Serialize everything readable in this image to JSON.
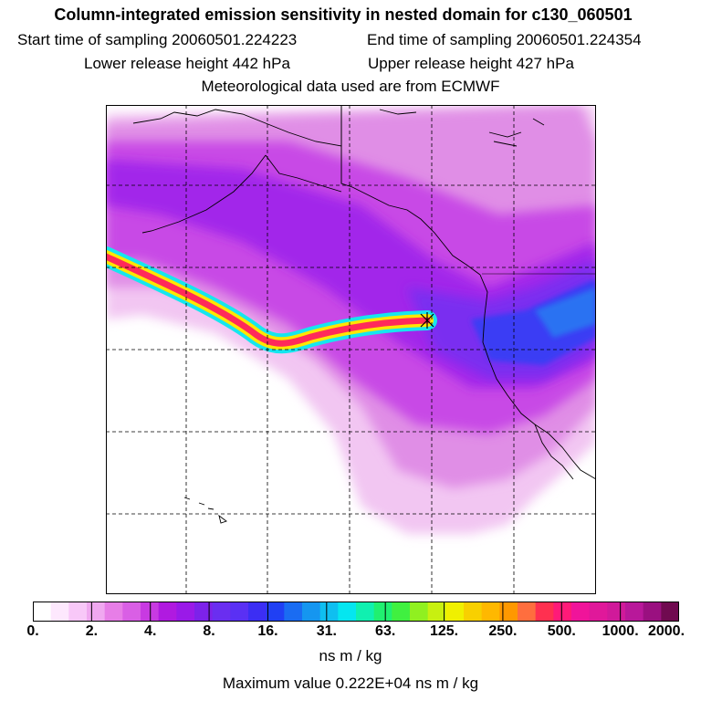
{
  "title": "Column-integrated emission sensitivity in nested domain for c130_060501",
  "sampling": {
    "start_label": "Start time of sampling",
    "start_value": "20060501.224223",
    "end_label": "End time of sampling",
    "end_value": "20060501.224354"
  },
  "release": {
    "lower_label": "Lower release height",
    "lower_value": "442 hPa",
    "upper_label": "Upper release height",
    "upper_value": "427 hPa"
  },
  "met_note": "Meteorological data used are from ECMWF",
  "colorbar": {
    "ticks": [
      "0.",
      "2.",
      "4.",
      "8.",
      "16.",
      "31.",
      "63.",
      "125.",
      "250.",
      "500.",
      "1000.",
      "2000."
    ],
    "unit": "ns m / kg",
    "colors": [
      "#ffffff",
      "#fde8fd",
      "#f8c8f8",
      "#f0a8f0",
      "#e77ee7",
      "#d95fe5",
      "#c83ae2",
      "#b01ae0",
      "#9a1ae8",
      "#7d22ea",
      "#6a2ef0",
      "#5a30f4",
      "#3c2ef4",
      "#2040f4",
      "#1a6cf2",
      "#1596f0",
      "#0fbff0",
      "#05e6f0",
      "#10f0b0",
      "#20f070",
      "#40f040",
      "#90f020",
      "#c8f010",
      "#f0f000",
      "#f8d000",
      "#ffb800",
      "#ff9800",
      "#ff6e3e",
      "#ff3050",
      "#ff1a78",
      "#f0149a",
      "#e0189a",
      "#d01a9a",
      "#b8189a",
      "#9a1080",
      "#700a50"
    ]
  },
  "max_value": {
    "label": "Maximum value",
    "value": "0.222E+04",
    "unit": "ns m / kg"
  },
  "map_colors": {
    "light": "#f2c6f2",
    "pink": "#e08ee6",
    "magenta": "#c84ae6",
    "purple": "#a227ea",
    "violet": "#7a2ef0",
    "blue": "#3a3ef4",
    "lightblue": "#2a72f2",
    "plume_outer": "#16e6ee",
    "plume_mid": "#ffe600",
    "plume_core": "#ff2a5a"
  }
}
